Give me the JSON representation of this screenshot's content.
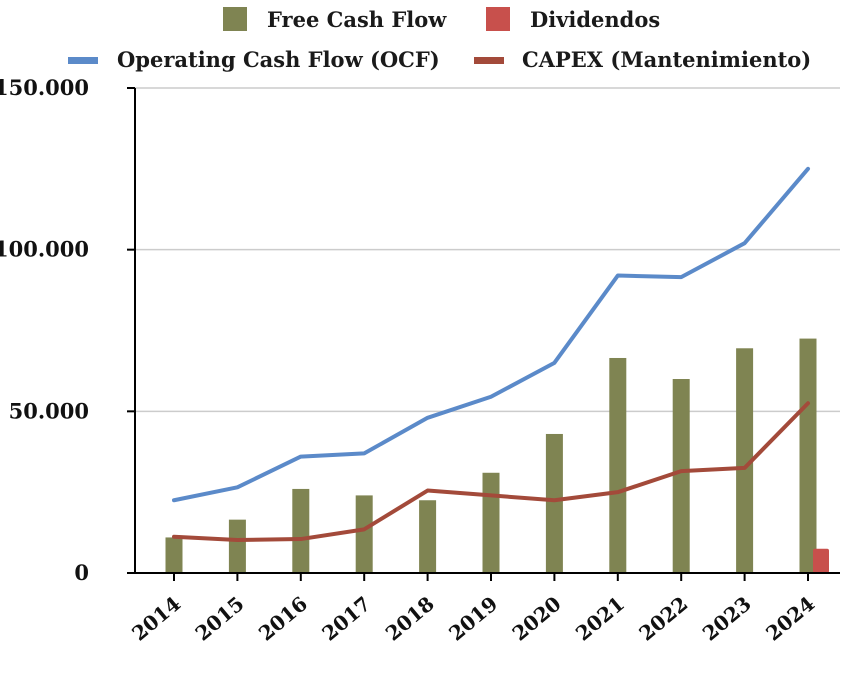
{
  "chart_data": {
    "type": "bar",
    "title": "",
    "xlabel": "",
    "ylabel": "",
    "categories": [
      "2014",
      "2015",
      "2016",
      "2017",
      "2018",
      "2019",
      "2020",
      "2021",
      "2022",
      "2023",
      "2024"
    ],
    "ylim": [
      0,
      150000
    ],
    "yticks": [
      0,
      50000,
      100000,
      150000
    ],
    "ytick_labels": [
      "0",
      "50.000",
      "100.000",
      "150.000"
    ],
    "grid": true,
    "legend_position": "top",
    "series": [
      {
        "name": "Free Cash Flow",
        "kind": "bar",
        "color": "#7f8452",
        "values": [
          11000,
          16500,
          26000,
          24000,
          22500,
          31000,
          43000,
          66500,
          60000,
          69500,
          72500
        ]
      },
      {
        "name": "Dividendos",
        "kind": "bar",
        "color": "#c8504c",
        "values": [
          0,
          0,
          0,
          0,
          0,
          0,
          0,
          0,
          0,
          0,
          7500
        ]
      },
      {
        "name": "Operating Cash Flow (OCF)",
        "kind": "line",
        "color": "#5b8ac9",
        "values": [
          22500,
          26500,
          36000,
          37000,
          48000,
          54500,
          65000,
          92000,
          91500,
          102000,
          125000
        ]
      },
      {
        "name": "CAPEX (Mantenimiento)",
        "kind": "line",
        "color": "#a34a3a",
        "values": [
          11200,
          10200,
          10500,
          13500,
          25500,
          24000,
          22500,
          25000,
          31500,
          32500,
          52500
        ]
      }
    ]
  }
}
